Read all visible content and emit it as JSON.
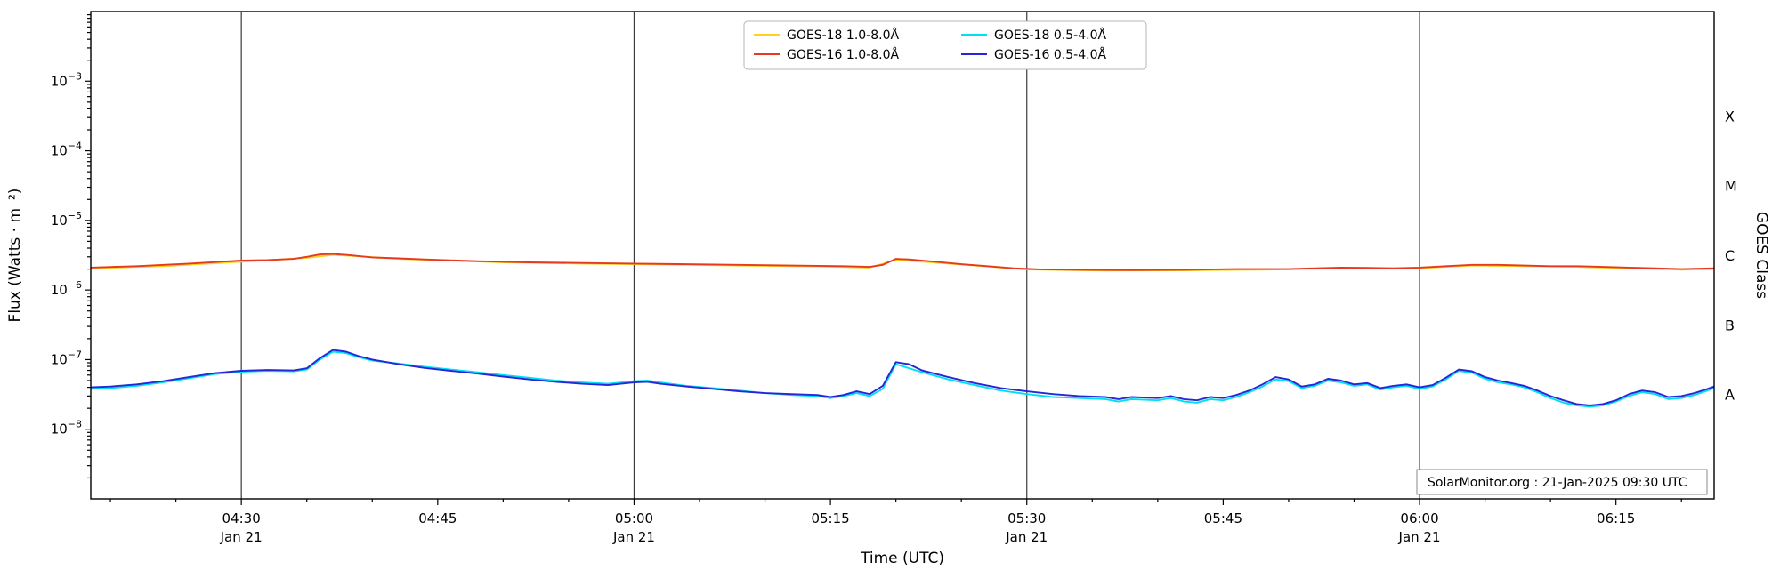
{
  "page": {
    "background": "#ffffff"
  },
  "annotation": {
    "text": "SolarMonitor.org : 21-Jan-2025 09:30 UTC"
  },
  "chart_data": {
    "type": "line",
    "title": "",
    "xlabel": "Time (UTC)",
    "ylabel": "Flux (Watts · m⁻²)",
    "ylabel_right": "GOES Class",
    "grid": "vertical-only",
    "grid_color": "#3a3a3a",
    "frame_color": "#000000",
    "legend_position": "top-center",
    "legend_border_color": "#b5b5b5",
    "x_domain_minutes": [
      258.5,
      382.5
    ],
    "y_domain_exp": [
      -9,
      -2
    ],
    "y_labeled_decades": [
      -3,
      -4,
      -5,
      -6,
      -7,
      -8
    ],
    "x_minor_step_minutes": 5,
    "x_gridline_minutes": [
      270,
      300,
      330,
      360
    ],
    "x_major_ticks": [
      {
        "minute": 270,
        "label": "04:30",
        "date": "Jan 21"
      },
      {
        "minute": 285,
        "label": "04:45",
        "date": ""
      },
      {
        "minute": 300,
        "label": "05:00",
        "date": "Jan 21"
      },
      {
        "minute": 315,
        "label": "05:15",
        "date": ""
      },
      {
        "minute": 330,
        "label": "05:30",
        "date": "Jan 21"
      },
      {
        "minute": 345,
        "label": "05:45",
        "date": ""
      },
      {
        "minute": 360,
        "label": "06:00",
        "date": "Jan 21"
      },
      {
        "minute": 375,
        "label": "06:15",
        "date": ""
      }
    ],
    "goes_classes": [
      {
        "label": "X",
        "exp": -3.5
      },
      {
        "label": "M",
        "exp": -4.5
      },
      {
        "label": "C",
        "exp": -5.5
      },
      {
        "label": "B",
        "exp": -6.5
      },
      {
        "label": "A",
        "exp": -7.5
      }
    ],
    "series": [
      {
        "name": "GOES-18 1.0-8.0Å",
        "color": "#ffd21f",
        "points": [
          [
            258.5,
            2.05e-06
          ],
          [
            264,
            2.2e-06
          ],
          [
            270,
            2.55e-06
          ],
          [
            275,
            2.9e-06
          ],
          [
            277,
            3.2e-06
          ],
          [
            279,
            3.05e-06
          ],
          [
            282,
            2.8e-06
          ],
          [
            286,
            2.65e-06
          ],
          [
            290,
            2.5e-06
          ],
          [
            296,
            2.4e-06
          ],
          [
            302,
            2.33e-06
          ],
          [
            308,
            2.25e-06
          ],
          [
            314,
            2.18e-06
          ],
          [
            318,
            2.1e-06
          ],
          [
            320,
            2.72e-06
          ],
          [
            323,
            2.48e-06
          ],
          [
            326,
            2.25e-06
          ],
          [
            330,
            1.97e-06
          ],
          [
            336,
            1.9e-06
          ],
          [
            342,
            1.92e-06
          ],
          [
            348,
            1.96e-06
          ],
          [
            354,
            2.05e-06
          ],
          [
            360,
            2.06e-06
          ],
          [
            364,
            2.25e-06
          ],
          [
            368,
            2.2e-06
          ],
          [
            372,
            2.15e-06
          ],
          [
            376,
            2.06e-06
          ],
          [
            380,
            1.96e-06
          ],
          [
            382.5,
            2e-06
          ]
        ]
      },
      {
        "name": "GOES-16 1.0-8.0Å",
        "color": "#e53a1d",
        "points": [
          [
            258.5,
            2.1e-06
          ],
          [
            262,
            2.2e-06
          ],
          [
            266,
            2.4e-06
          ],
          [
            270,
            2.65e-06
          ],
          [
            272,
            2.7e-06
          ],
          [
            274,
            2.8e-06
          ],
          [
            275,
            3e-06
          ],
          [
            276,
            3.25e-06
          ],
          [
            277,
            3.3e-06
          ],
          [
            278,
            3.2e-06
          ],
          [
            280,
            2.95e-06
          ],
          [
            282,
            2.85e-06
          ],
          [
            284,
            2.75e-06
          ],
          [
            288,
            2.6e-06
          ],
          [
            292,
            2.5e-06
          ],
          [
            296,
            2.45e-06
          ],
          [
            300,
            2.4e-06
          ],
          [
            304,
            2.35e-06
          ],
          [
            308,
            2.3e-06
          ],
          [
            312,
            2.25e-06
          ],
          [
            316,
            2.2e-06
          ],
          [
            318,
            2.15e-06
          ],
          [
            319,
            2.3e-06
          ],
          [
            320,
            2.8e-06
          ],
          [
            321,
            2.75e-06
          ],
          [
            323,
            2.55e-06
          ],
          [
            325,
            2.35e-06
          ],
          [
            327,
            2.2e-06
          ],
          [
            329,
            2.05e-06
          ],
          [
            331,
            1.98e-06
          ],
          [
            334,
            1.95e-06
          ],
          [
            338,
            1.93e-06
          ],
          [
            342,
            1.95e-06
          ],
          [
            346,
            2e-06
          ],
          [
            350,
            2e-06
          ],
          [
            352,
            2.05e-06
          ],
          [
            354,
            2.1e-06
          ],
          [
            356,
            2.08e-06
          ],
          [
            358,
            2.05e-06
          ],
          [
            360,
            2.1e-06
          ],
          [
            362,
            2.2e-06
          ],
          [
            364,
            2.3e-06
          ],
          [
            366,
            2.3e-06
          ],
          [
            368,
            2.25e-06
          ],
          [
            370,
            2.2e-06
          ],
          [
            372,
            2.2e-06
          ],
          [
            374,
            2.15e-06
          ],
          [
            376,
            2.1e-06
          ],
          [
            378,
            2.05e-06
          ],
          [
            380,
            2e-06
          ],
          [
            382.5,
            2.05e-06
          ]
        ]
      },
      {
        "name": "GOES-18 0.5-4.0Å",
        "color": "#00e0f5",
        "points": [
          [
            258.5,
            3.8e-08
          ],
          [
            260,
            3.9e-08
          ],
          [
            262,
            4.2e-08
          ],
          [
            264,
            4.7e-08
          ],
          [
            266,
            5.4e-08
          ],
          [
            268,
            6.2e-08
          ],
          [
            270,
            6.7e-08
          ],
          [
            272,
            6.9e-08
          ],
          [
            274,
            6.8e-08
          ],
          [
            275,
            7.2e-08
          ],
          [
            276,
            1e-07
          ],
          [
            277,
            1.3e-07
          ],
          [
            278,
            1.24e-07
          ],
          [
            279,
            1.08e-07
          ],
          [
            280,
            9.7e-08
          ],
          [
            282,
            8.8e-08
          ],
          [
            284,
            7.9e-08
          ],
          [
            286,
            7.2e-08
          ],
          [
            288,
            6.6e-08
          ],
          [
            290,
            6e-08
          ],
          [
            292,
            5.5e-08
          ],
          [
            294,
            5e-08
          ],
          [
            296,
            4.7e-08
          ],
          [
            298,
            4.5e-08
          ],
          [
            300,
            4.9e-08
          ],
          [
            301,
            5e-08
          ],
          [
            302,
            4.7e-08
          ],
          [
            304,
            4.2e-08
          ],
          [
            306,
            3.9e-08
          ],
          [
            308,
            3.6e-08
          ],
          [
            310,
            3.3e-08
          ],
          [
            312,
            3.1e-08
          ],
          [
            314,
            3e-08
          ],
          [
            315,
            2.8e-08
          ],
          [
            316,
            3e-08
          ],
          [
            317,
            3.3e-08
          ],
          [
            318,
            3e-08
          ],
          [
            319,
            3.8e-08
          ],
          [
            320,
            8.6e-08
          ],
          [
            322,
            6.6e-08
          ],
          [
            324,
            5.2e-08
          ],
          [
            326,
            4.3e-08
          ],
          [
            328,
            3.6e-08
          ],
          [
            330,
            3.2e-08
          ],
          [
            332,
            2.9e-08
          ],
          [
            334,
            2.8e-08
          ],
          [
            336,
            2.7e-08
          ],
          [
            337,
            2.5e-08
          ],
          [
            338,
            2.7e-08
          ],
          [
            340,
            2.6e-08
          ],
          [
            341,
            2.8e-08
          ],
          [
            342,
            2.5e-08
          ],
          [
            343,
            2.4e-08
          ],
          [
            344,
            2.7e-08
          ],
          [
            345,
            2.6e-08
          ],
          [
            346,
            2.9e-08
          ],
          [
            347,
            3.4e-08
          ],
          [
            348,
            4.1e-08
          ],
          [
            349,
            5.2e-08
          ],
          [
            350,
            4.9e-08
          ],
          [
            351,
            3.9e-08
          ],
          [
            352,
            4.2e-08
          ],
          [
            353,
            5e-08
          ],
          [
            354,
            4.7e-08
          ],
          [
            355,
            4.2e-08
          ],
          [
            356,
            4.4e-08
          ],
          [
            357,
            3.7e-08
          ],
          [
            358,
            4e-08
          ],
          [
            359,
            4.2e-08
          ],
          [
            360,
            3.8e-08
          ],
          [
            361,
            4.1e-08
          ],
          [
            362,
            5.2e-08
          ],
          [
            363,
            6.9e-08
          ],
          [
            364,
            6.5e-08
          ],
          [
            365,
            5.3e-08
          ],
          [
            366,
            4.7e-08
          ],
          [
            367,
            4.4e-08
          ],
          [
            368,
            4e-08
          ],
          [
            369,
            3.4e-08
          ],
          [
            370,
            2.8e-08
          ],
          [
            371,
            2.4e-08
          ],
          [
            372,
            2.2e-08
          ],
          [
            373,
            2.1e-08
          ],
          [
            374,
            2.2e-08
          ],
          [
            375,
            2.5e-08
          ],
          [
            376,
            3e-08
          ],
          [
            377,
            3.4e-08
          ],
          [
            378,
            3.2e-08
          ],
          [
            379,
            2.7e-08
          ],
          [
            380,
            2.8e-08
          ],
          [
            381,
            3.1e-08
          ],
          [
            382,
            3.6e-08
          ],
          [
            382.5,
            3.9e-08
          ]
        ]
      },
      {
        "name": "GOES-16 0.5-4.0Å",
        "color": "#2626d8",
        "points": [
          [
            258.5,
            4e-08
          ],
          [
            260,
            4.1e-08
          ],
          [
            262,
            4.4e-08
          ],
          [
            264,
            4.9e-08
          ],
          [
            266,
            5.6e-08
          ],
          [
            268,
            6.4e-08
          ],
          [
            270,
            6.9e-08
          ],
          [
            272,
            7.1e-08
          ],
          [
            274,
            7e-08
          ],
          [
            275,
            7.5e-08
          ],
          [
            276,
            1.05e-07
          ],
          [
            277,
            1.38e-07
          ],
          [
            278,
            1.3e-07
          ],
          [
            279,
            1.12e-07
          ],
          [
            280,
            1e-07
          ],
          [
            282,
            8.6e-08
          ],
          [
            284,
            7.6e-08
          ],
          [
            286,
            6.9e-08
          ],
          [
            288,
            6.3e-08
          ],
          [
            290,
            5.7e-08
          ],
          [
            292,
            5.2e-08
          ],
          [
            294,
            4.8e-08
          ],
          [
            296,
            4.5e-08
          ],
          [
            298,
            4.3e-08
          ],
          [
            300,
            4.7e-08
          ],
          [
            301,
            4.8e-08
          ],
          [
            302,
            4.5e-08
          ],
          [
            304,
            4.1e-08
          ],
          [
            306,
            3.8e-08
          ],
          [
            308,
            3.5e-08
          ],
          [
            310,
            3.3e-08
          ],
          [
            312,
            3.2e-08
          ],
          [
            314,
            3.1e-08
          ],
          [
            315,
            2.9e-08
          ],
          [
            316,
            3.1e-08
          ],
          [
            317,
            3.5e-08
          ],
          [
            318,
            3.2e-08
          ],
          [
            319,
            4.2e-08
          ],
          [
            320,
            9.2e-08
          ],
          [
            321,
            8.6e-08
          ],
          [
            322,
            7e-08
          ],
          [
            324,
            5.6e-08
          ],
          [
            326,
            4.6e-08
          ],
          [
            328,
            3.9e-08
          ],
          [
            330,
            3.5e-08
          ],
          [
            332,
            3.2e-08
          ],
          [
            334,
            3e-08
          ],
          [
            336,
            2.9e-08
          ],
          [
            337,
            2.7e-08
          ],
          [
            338,
            2.9e-08
          ],
          [
            340,
            2.8e-08
          ],
          [
            341,
            3e-08
          ],
          [
            342,
            2.7e-08
          ],
          [
            343,
            2.6e-08
          ],
          [
            344,
            2.9e-08
          ],
          [
            345,
            2.8e-08
          ],
          [
            346,
            3.1e-08
          ],
          [
            347,
            3.6e-08
          ],
          [
            348,
            4.4e-08
          ],
          [
            349,
            5.6e-08
          ],
          [
            350,
            5.2e-08
          ],
          [
            351,
            4.1e-08
          ],
          [
            352,
            4.4e-08
          ],
          [
            353,
            5.3e-08
          ],
          [
            354,
            5e-08
          ],
          [
            355,
            4.4e-08
          ],
          [
            356,
            4.6e-08
          ],
          [
            357,
            3.9e-08
          ],
          [
            358,
            4.2e-08
          ],
          [
            359,
            4.4e-08
          ],
          [
            360,
            4e-08
          ],
          [
            361,
            4.3e-08
          ],
          [
            362,
            5.5e-08
          ],
          [
            363,
            7.2e-08
          ],
          [
            364,
            6.8e-08
          ],
          [
            365,
            5.6e-08
          ],
          [
            366,
            5e-08
          ],
          [
            367,
            4.6e-08
          ],
          [
            368,
            4.2e-08
          ],
          [
            369,
            3.6e-08
          ],
          [
            370,
            3e-08
          ],
          [
            371,
            2.6e-08
          ],
          [
            372,
            2.3e-08
          ],
          [
            373,
            2.2e-08
          ],
          [
            374,
            2.3e-08
          ],
          [
            375,
            2.6e-08
          ],
          [
            376,
            3.2e-08
          ],
          [
            377,
            3.6e-08
          ],
          [
            378,
            3.4e-08
          ],
          [
            379,
            2.9e-08
          ],
          [
            380,
            3e-08
          ],
          [
            381,
            3.3e-08
          ],
          [
            382,
            3.8e-08
          ],
          [
            382.5,
            4.1e-08
          ]
        ]
      }
    ]
  }
}
